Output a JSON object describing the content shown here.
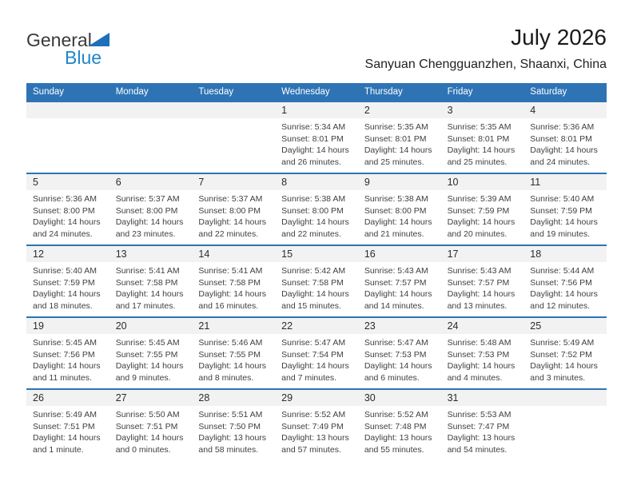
{
  "logo": {
    "text_general": "General",
    "text_blue": "Blue"
  },
  "header": {
    "title": "July 2026",
    "subtitle": "Sanyuan Chengguanzhen, Shaanxi, China"
  },
  "weekdays": [
    "Sunday",
    "Monday",
    "Tuesday",
    "Wednesday",
    "Thursday",
    "Friday",
    "Saturday"
  ],
  "colors": {
    "header_blue": "#2e74b5",
    "week_divider_blue": "#2e74b5",
    "day_band_gray": "#f2f2f2",
    "logo_blue": "#1e87c9",
    "logo_triangle_blue": "#1d70b8"
  },
  "weeks": [
    [
      null,
      null,
      null,
      {
        "day": "1",
        "lines": [
          "Sunrise: 5:34 AM",
          "Sunset: 8:01 PM",
          "Daylight: 14 hours",
          "and 26 minutes."
        ]
      },
      {
        "day": "2",
        "lines": [
          "Sunrise: 5:35 AM",
          "Sunset: 8:01 PM",
          "Daylight: 14 hours",
          "and 25 minutes."
        ]
      },
      {
        "day": "3",
        "lines": [
          "Sunrise: 5:35 AM",
          "Sunset: 8:01 PM",
          "Daylight: 14 hours",
          "and 25 minutes."
        ]
      },
      {
        "day": "4",
        "lines": [
          "Sunrise: 5:36 AM",
          "Sunset: 8:01 PM",
          "Daylight: 14 hours",
          "and 24 minutes."
        ]
      }
    ],
    [
      {
        "day": "5",
        "lines": [
          "Sunrise: 5:36 AM",
          "Sunset: 8:00 PM",
          "Daylight: 14 hours",
          "and 24 minutes."
        ]
      },
      {
        "day": "6",
        "lines": [
          "Sunrise: 5:37 AM",
          "Sunset: 8:00 PM",
          "Daylight: 14 hours",
          "and 23 minutes."
        ]
      },
      {
        "day": "7",
        "lines": [
          "Sunrise: 5:37 AM",
          "Sunset: 8:00 PM",
          "Daylight: 14 hours",
          "and 22 minutes."
        ]
      },
      {
        "day": "8",
        "lines": [
          "Sunrise: 5:38 AM",
          "Sunset: 8:00 PM",
          "Daylight: 14 hours",
          "and 22 minutes."
        ]
      },
      {
        "day": "9",
        "lines": [
          "Sunrise: 5:38 AM",
          "Sunset: 8:00 PM",
          "Daylight: 14 hours",
          "and 21 minutes."
        ]
      },
      {
        "day": "10",
        "lines": [
          "Sunrise: 5:39 AM",
          "Sunset: 7:59 PM",
          "Daylight: 14 hours",
          "and 20 minutes."
        ]
      },
      {
        "day": "11",
        "lines": [
          "Sunrise: 5:40 AM",
          "Sunset: 7:59 PM",
          "Daylight: 14 hours",
          "and 19 minutes."
        ]
      }
    ],
    [
      {
        "day": "12",
        "lines": [
          "Sunrise: 5:40 AM",
          "Sunset: 7:59 PM",
          "Daylight: 14 hours",
          "and 18 minutes."
        ]
      },
      {
        "day": "13",
        "lines": [
          "Sunrise: 5:41 AM",
          "Sunset: 7:58 PM",
          "Daylight: 14 hours",
          "and 17 minutes."
        ]
      },
      {
        "day": "14",
        "lines": [
          "Sunrise: 5:41 AM",
          "Sunset: 7:58 PM",
          "Daylight: 14 hours",
          "and 16 minutes."
        ]
      },
      {
        "day": "15",
        "lines": [
          "Sunrise: 5:42 AM",
          "Sunset: 7:58 PM",
          "Daylight: 14 hours",
          "and 15 minutes."
        ]
      },
      {
        "day": "16",
        "lines": [
          "Sunrise: 5:43 AM",
          "Sunset: 7:57 PM",
          "Daylight: 14 hours",
          "and 14 minutes."
        ]
      },
      {
        "day": "17",
        "lines": [
          "Sunrise: 5:43 AM",
          "Sunset: 7:57 PM",
          "Daylight: 14 hours",
          "and 13 minutes."
        ]
      },
      {
        "day": "18",
        "lines": [
          "Sunrise: 5:44 AM",
          "Sunset: 7:56 PM",
          "Daylight: 14 hours",
          "and 12 minutes."
        ]
      }
    ],
    [
      {
        "day": "19",
        "lines": [
          "Sunrise: 5:45 AM",
          "Sunset: 7:56 PM",
          "Daylight: 14 hours",
          "and 11 minutes."
        ]
      },
      {
        "day": "20",
        "lines": [
          "Sunrise: 5:45 AM",
          "Sunset: 7:55 PM",
          "Daylight: 14 hours",
          "and 9 minutes."
        ]
      },
      {
        "day": "21",
        "lines": [
          "Sunrise: 5:46 AM",
          "Sunset: 7:55 PM",
          "Daylight: 14 hours",
          "and 8 minutes."
        ]
      },
      {
        "day": "22",
        "lines": [
          "Sunrise: 5:47 AM",
          "Sunset: 7:54 PM",
          "Daylight: 14 hours",
          "and 7 minutes."
        ]
      },
      {
        "day": "23",
        "lines": [
          "Sunrise: 5:47 AM",
          "Sunset: 7:53 PM",
          "Daylight: 14 hours",
          "and 6 minutes."
        ]
      },
      {
        "day": "24",
        "lines": [
          "Sunrise: 5:48 AM",
          "Sunset: 7:53 PM",
          "Daylight: 14 hours",
          "and 4 minutes."
        ]
      },
      {
        "day": "25",
        "lines": [
          "Sunrise: 5:49 AM",
          "Sunset: 7:52 PM",
          "Daylight: 14 hours",
          "and 3 minutes."
        ]
      }
    ],
    [
      {
        "day": "26",
        "lines": [
          "Sunrise: 5:49 AM",
          "Sunset: 7:51 PM",
          "Daylight: 14 hours",
          "and 1 minute."
        ]
      },
      {
        "day": "27",
        "lines": [
          "Sunrise: 5:50 AM",
          "Sunset: 7:51 PM",
          "Daylight: 14 hours",
          "and 0 minutes."
        ]
      },
      {
        "day": "28",
        "lines": [
          "Sunrise: 5:51 AM",
          "Sunset: 7:50 PM",
          "Daylight: 13 hours",
          "and 58 minutes."
        ]
      },
      {
        "day": "29",
        "lines": [
          "Sunrise: 5:52 AM",
          "Sunset: 7:49 PM",
          "Daylight: 13 hours",
          "and 57 minutes."
        ]
      },
      {
        "day": "30",
        "lines": [
          "Sunrise: 5:52 AM",
          "Sunset: 7:48 PM",
          "Daylight: 13 hours",
          "and 55 minutes."
        ]
      },
      {
        "day": "31",
        "lines": [
          "Sunrise: 5:53 AM",
          "Sunset: 7:47 PM",
          "Daylight: 13 hours",
          "and 54 minutes."
        ]
      },
      null
    ]
  ]
}
